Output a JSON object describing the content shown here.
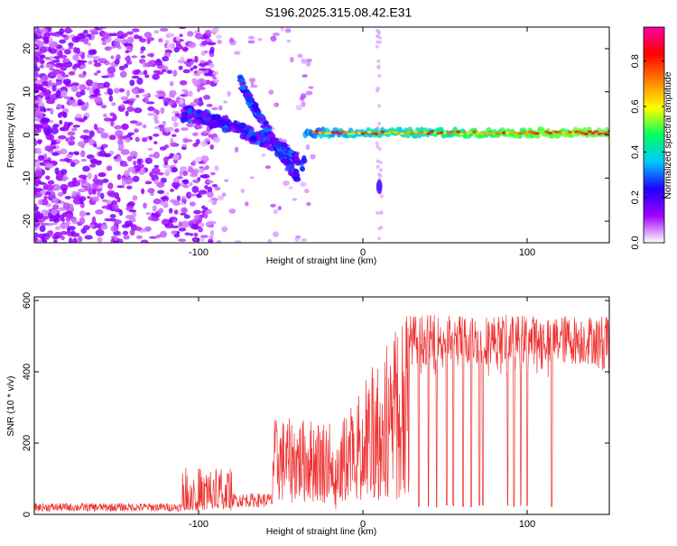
{
  "page": {
    "title": "S196.2025.315.08.42.E31"
  },
  "colors": {
    "spectrogram_cmap": [
      "#ffffff",
      "#a000ff",
      "#2000ff",
      "#00c8ff",
      "#00ff60",
      "#ffff00",
      "#ff8000",
      "#ff0000",
      "#ff00a0"
    ],
    "snr_line": "#ee3333",
    "axes": "#000000"
  },
  "chart_data": [
    {
      "type": "heatmap",
      "name": "spectrogram",
      "title": "",
      "xlabel": "Height of straight line (km)",
      "ylabel": "Frequency (Hz)",
      "xlim": [
        -200,
        150
      ],
      "ylim": [
        -25,
        25
      ],
      "xticks": [
        -100,
        0,
        100
      ],
      "yticks": [
        -20,
        -10,
        0,
        10,
        20
      ],
      "features": [
        {
          "desc": "bright horizontal band",
          "x_range": [
            -35,
            150
          ],
          "freq_hz": 0.5,
          "max_amplitude": 1.0
        },
        {
          "desc": "upward arc",
          "x_from": -110,
          "x_to": -35,
          "freq_from": 5,
          "freq_to": -7
        },
        {
          "desc": "downward arc",
          "x_from": -75,
          "x_to": -40,
          "freq_from": 13,
          "freq_to": -10
        },
        {
          "desc": "isolated blob",
          "x": 10,
          "freq_hz": -12
        }
      ],
      "colorbar": {
        "label": "Normalized spectral amplitude",
        "range": [
          0.0,
          0.95
        ],
        "ticks": [
          "0.0",
          "0.2",
          "0.4",
          "0.6",
          "0.8"
        ]
      }
    },
    {
      "type": "line",
      "name": "snr",
      "title": "",
      "xlabel": "Height of straight line (km)",
      "ylabel": "SNR (10 * v/v)",
      "xlim": [
        -200,
        150
      ],
      "ylim": [
        0,
        610
      ],
      "xticks": [
        -100,
        0,
        100
      ],
      "yticks": [
        0,
        200,
        400,
        600
      ],
      "series": [
        {
          "name": "SNR",
          "segments": [
            {
              "x_from": -200,
              "x_to": -110,
              "snr_mean": 20,
              "snr_spread": 12
            },
            {
              "x_from": -110,
              "x_to": -80,
              "snr_mean": 70,
              "snr_spread": 60
            },
            {
              "x_from": -80,
              "x_to": -55,
              "snr_mean": 40,
              "snr_spread": 20
            },
            {
              "x_from": -55,
              "x_to": -20,
              "snr_mean": 150,
              "snr_spread": 120
            },
            {
              "x_from": -20,
              "x_to": 28,
              "snr_mean": 250,
              "snr_spread": 150
            },
            {
              "x_from": 28,
              "x_to": 150,
              "snr_mean": 490,
              "snr_spread": 70
            }
          ],
          "dropouts_x": [
            34,
            40,
            45,
            51,
            55,
            61,
            66,
            71,
            73,
            88,
            92,
            96,
            100,
            115
          ]
        }
      ]
    }
  ]
}
